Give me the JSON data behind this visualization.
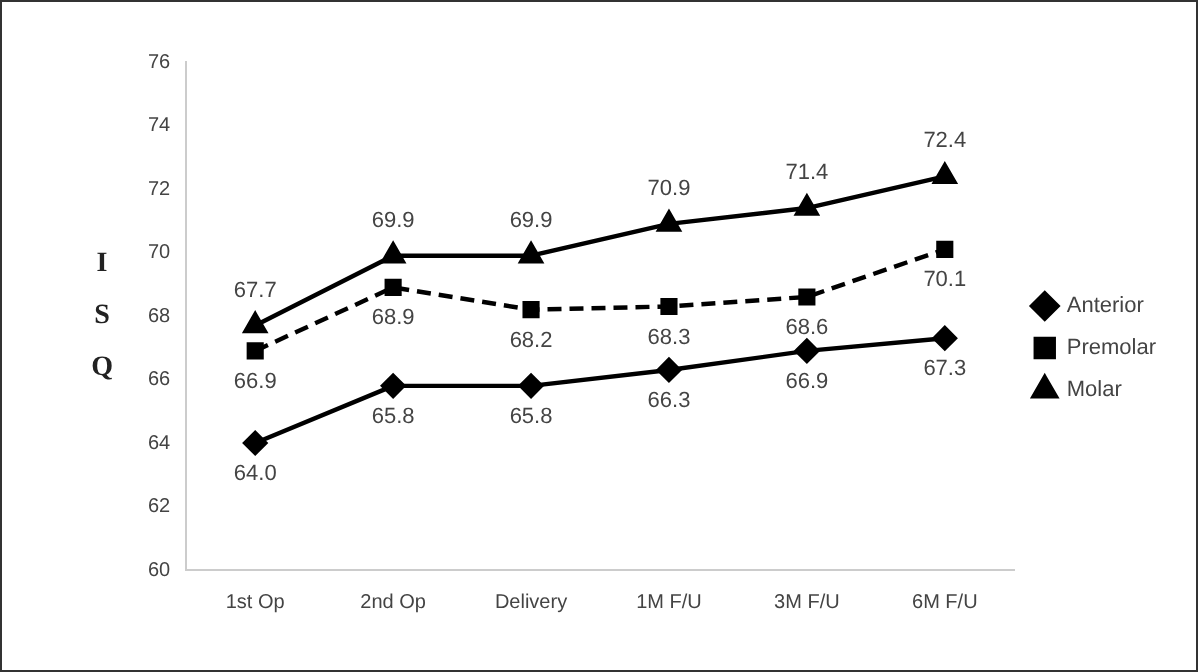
{
  "chart_data": {
    "type": "line",
    "ylabel": "ISQ",
    "categories": [
      "1st Op",
      "2nd Op",
      "Delivery",
      "1M F/U",
      "3M F/U",
      "6M F/U"
    ],
    "series": [
      {
        "name": "Anterior",
        "color": "#000000",
        "values": [
          64.0,
          65.8,
          65.8,
          66.3,
          66.9,
          67.3
        ],
        "value_labels": [
          "64.0",
          "65.8",
          "65.8",
          "66.3",
          "66.9",
          "67.3"
        ],
        "marker": "diamond",
        "line_style": "solid"
      },
      {
        "name": "Premolar",
        "color": "#000000",
        "values": [
          66.9,
          68.9,
          68.2,
          68.3,
          68.6,
          70.1
        ],
        "value_labels": [
          "66.9",
          "68.9",
          "68.2",
          "68.3",
          "68.6",
          "70.1"
        ],
        "marker": "square",
        "line_style": "dashed"
      },
      {
        "name": "Molar",
        "color": "#000000",
        "values": [
          67.7,
          69.9,
          69.9,
          70.9,
          71.4,
          72.4
        ],
        "value_labels": [
          "67.7",
          "69.9",
          "69.9",
          "70.9",
          "71.4",
          "72.4"
        ],
        "marker": "triangle",
        "line_style": "solid"
      }
    ],
    "ylim": [
      60,
      76
    ],
    "yticks": [
      60,
      62,
      64,
      66,
      68,
      70,
      72,
      74,
      76
    ],
    "grid": false,
    "legend": "right"
  }
}
